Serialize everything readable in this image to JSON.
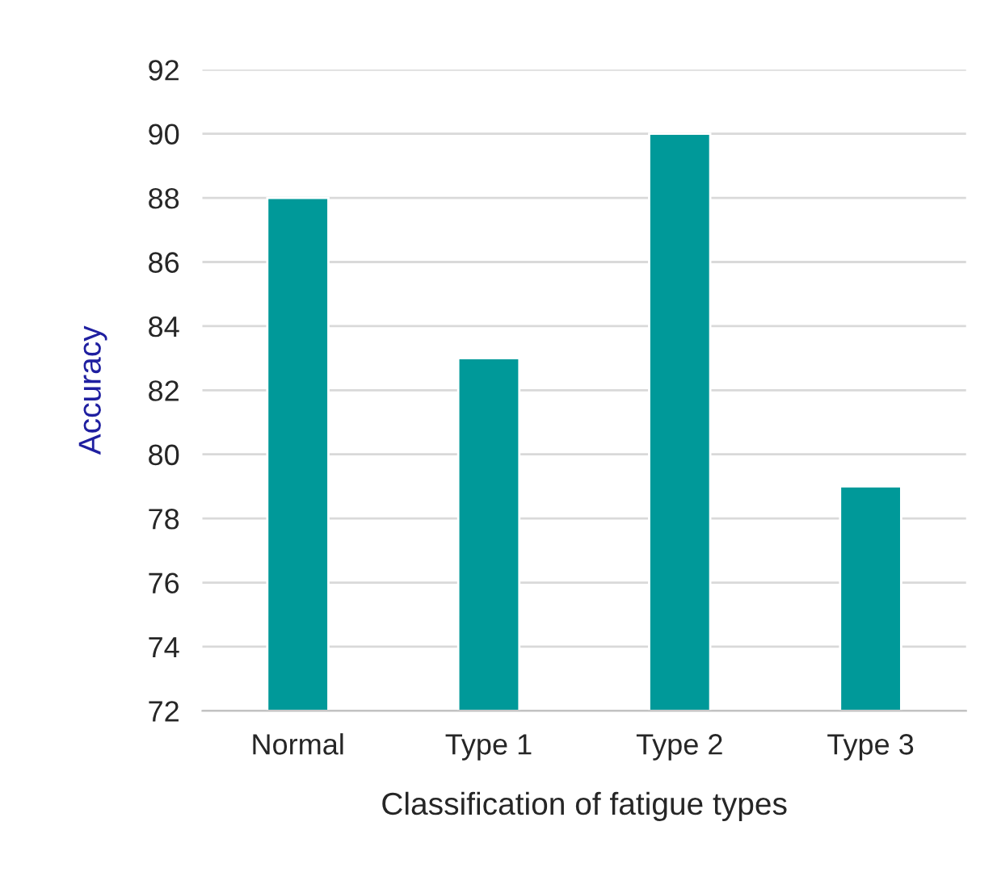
{
  "chart_data": {
    "type": "bar",
    "xlabel": "Classification of fatigue types",
    "ylabel": "Accuracy",
    "categories": [
      "Normal",
      "Type 1",
      "Type 2",
      "Type 3"
    ],
    "values": [
      88,
      83,
      90,
      79
    ],
    "color": "#009999",
    "ylim": [
      72,
      92
    ],
    "yticks": [
      72,
      74,
      76,
      78,
      80,
      82,
      84,
      86,
      88,
      90,
      92
    ],
    "grid": "y",
    "legend": false
  }
}
